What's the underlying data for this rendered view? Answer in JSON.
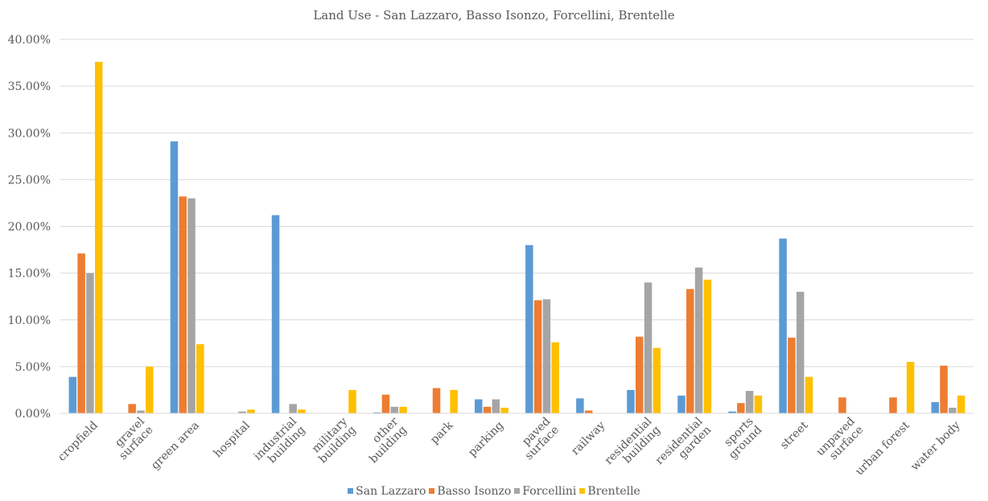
{
  "chart_data": {
    "type": "bar",
    "title": "Land Use - San Lazzaro, Basso Isonzo, Forcellini, Brentelle",
    "xlabel": "",
    "ylabel": "",
    "ylim": [
      0,
      40
    ],
    "y_ticks": [
      "0.00%",
      "5.00%",
      "10.00%",
      "15.00%",
      "20.00%",
      "25.00%",
      "30.00%",
      "35.00%",
      "40.00%"
    ],
    "grid": true,
    "legend_position": "bottom",
    "categories": [
      "cropfield",
      "gravel surface",
      "green area",
      "hospital",
      "industrial building",
      "military building",
      "other building",
      "park",
      "parking",
      "paved surface",
      "railway",
      "residential building",
      "residential garden",
      "sports ground",
      "street",
      "unpaved surface",
      "urban forest",
      "water body"
    ],
    "series": [
      {
        "name": "San Lazzaro",
        "color": "#5B9BD5",
        "values": [
          3.9,
          0,
          29.1,
          0,
          21.2,
          0,
          0.1,
          0,
          1.5,
          18.0,
          1.6,
          2.5,
          1.9,
          0.2,
          18.7,
          0,
          0,
          1.2
        ]
      },
      {
        "name": "Basso Isonzo",
        "color": "#ED7D31",
        "values": [
          17.1,
          1.0,
          23.2,
          0,
          0,
          0,
          2.0,
          2.7,
          0.7,
          12.1,
          0.3,
          8.2,
          13.3,
          1.1,
          8.1,
          1.7,
          1.7,
          5.1
        ]
      },
      {
        "name": "Forcellini",
        "color": "#A5A5A5",
        "values": [
          15.0,
          0.3,
          23.0,
          0.2,
          1.0,
          0,
          0.7,
          0,
          1.5,
          12.2,
          0,
          14.0,
          15.6,
          2.4,
          13.0,
          0,
          0,
          0.6
        ]
      },
      {
        "name": "Brentelle",
        "color": "#FFC000",
        "values": [
          37.6,
          5.0,
          7.4,
          0.4,
          0.4,
          2.5,
          0.7,
          2.5,
          0.6,
          7.6,
          0,
          7.0,
          14.3,
          1.9,
          3.9,
          0,
          5.5,
          1.9
        ]
      }
    ]
  }
}
